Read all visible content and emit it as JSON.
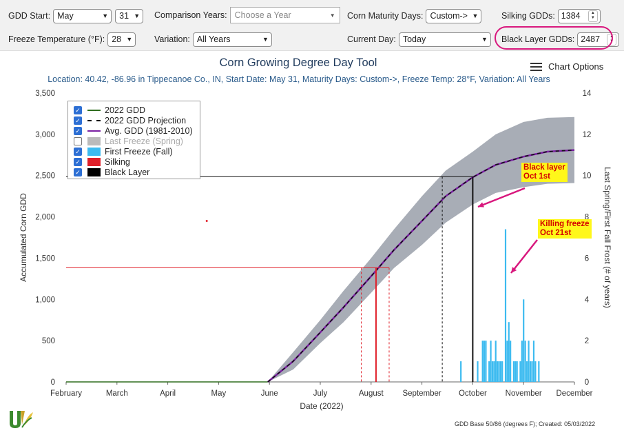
{
  "controls": {
    "gdd_start_label": "GDD Start:",
    "gdd_start_month": "May",
    "gdd_start_day": "31",
    "comparison_label": "Comparison Years:",
    "comparison_placeholder": "Choose a Year",
    "maturity_label": "Corn Maturity Days:",
    "maturity_value": "Custom->",
    "silking_label": "Silking GDDs:",
    "silking_value": "1384",
    "freeze_label": "Freeze Temperature (°F):",
    "freeze_value": "28",
    "variation_label": "Variation:",
    "variation_value": "All Years",
    "current_day_label": "Current Day:",
    "current_day_value": "Today",
    "black_layer_label": "Black Layer GDDs:",
    "black_layer_value": "2487"
  },
  "chart": {
    "title": "Corn Growing Degree Day Tool",
    "subtitle": "Location: 40.42, -86.96 in Tippecanoe Co., IN, Start Date: May 31, Maturity Days: Custom->, Freeze Temp: 28°F, Variation: All Years",
    "options_label": "Chart Options",
    "footer": "GDD Base 50/86 (degrees F); Created: 05/03/2022",
    "callouts": {
      "black_layer": "Black layer\nOct 1st",
      "killing_freeze": "Killing freeze\nOct 21st"
    },
    "legend": [
      {
        "label": "2022 GDD",
        "checked": true,
        "color": "#2f6d1f",
        "style": "line"
      },
      {
        "label": "2022 GDD Projection",
        "checked": true,
        "color": "#000000",
        "style": "dash"
      },
      {
        "label": "Avg. GDD (1981-2010)",
        "checked": true,
        "color": "#7a1fa2",
        "style": "line"
      },
      {
        "label": "Last Freeze (Spring)",
        "checked": false,
        "color": "#bbbbbb",
        "style": "box"
      },
      {
        "label": "First Freeze (Fall)",
        "checked": true,
        "color": "#3dbbf0",
        "style": "box"
      },
      {
        "label": "Silking",
        "checked": true,
        "color": "#e0202a",
        "style": "box"
      },
      {
        "label": "Black Layer",
        "checked": true,
        "color": "#000000",
        "style": "box"
      }
    ]
  },
  "chart_data": {
    "type": "line",
    "title": "Corn Growing Degree Day Tool",
    "xlabel": "Date (2022)",
    "ylabel": "Accumulated Corn GDD",
    "y2label": "Last Spring/First Fall Frost (# of years)",
    "x_ticks": [
      "February",
      "March",
      "April",
      "May",
      "June",
      "July",
      "August",
      "September",
      "October",
      "November",
      "December"
    ],
    "x_range_months": [
      2,
      12
    ],
    "y_ticks": [
      "0",
      "500",
      "1,000",
      "1,500",
      "2,000",
      "2,500",
      "3,000",
      "3,500"
    ],
    "ylim": [
      0,
      3500
    ],
    "y2_ticks": [
      "0",
      "2",
      "4",
      "6",
      "8",
      "10",
      "12",
      "14"
    ],
    "y2lim": [
      0,
      14
    ],
    "avg_gdd": {
      "x": [
        "2022-05-31",
        "2022-06-15",
        "2022-07-01",
        "2022-07-15",
        "2022-08-01",
        "2022-08-15",
        "2022-09-01",
        "2022-09-15",
        "2022-10-01",
        "2022-10-15",
        "2022-11-01",
        "2022-11-15",
        "2022-12-01"
      ],
      "y": [
        0,
        250,
        600,
        900,
        1280,
        1600,
        1950,
        2250,
        2480,
        2630,
        2730,
        2790,
        2810
      ]
    },
    "band": {
      "x": [
        "2022-05-31",
        "2022-06-15",
        "2022-07-01",
        "2022-07-15",
        "2022-08-01",
        "2022-08-15",
        "2022-09-01",
        "2022-09-15",
        "2022-10-01",
        "2022-10-15",
        "2022-11-01",
        "2022-11-15",
        "2022-12-01"
      ],
      "upper": [
        0,
        360,
        750,
        1100,
        1500,
        1850,
        2250,
        2560,
        2790,
        3000,
        3150,
        3200,
        3210
      ],
      "lower": [
        0,
        150,
        470,
        720,
        1080,
        1380,
        1660,
        1930,
        2150,
        2290,
        2360,
        2400,
        2410
      ]
    },
    "silking": {
      "date": "2022-08-04",
      "gdd": 1384,
      "range": [
        "2022-07-26",
        "2022-08-12"
      ]
    },
    "black_layer": {
      "date": "2022-10-01",
      "gdd": 2487,
      "range": [
        "2022-09-13",
        "2022-10-01"
      ]
    },
    "first_freeze_bars": [
      {
        "date": "2022-09-24",
        "count": 1
      },
      {
        "date": "2022-10-04",
        "count": 1
      },
      {
        "date": "2022-10-07",
        "count": 2
      },
      {
        "date": "2022-10-08",
        "count": 2
      },
      {
        "date": "2022-10-09",
        "count": 2
      },
      {
        "date": "2022-10-11",
        "count": 1
      },
      {
        "date": "2022-10-12",
        "count": 2
      },
      {
        "date": "2022-10-13",
        "count": 1
      },
      {
        "date": "2022-10-14",
        "count": 1
      },
      {
        "date": "2022-10-15",
        "count": 2
      },
      {
        "date": "2022-10-16",
        "count": 1
      },
      {
        "date": "2022-10-17",
        "count": 1
      },
      {
        "date": "2022-10-18",
        "count": 1
      },
      {
        "date": "2022-10-19",
        "count": 1
      },
      {
        "date": "2022-10-21",
        "count": 7.4
      },
      {
        "date": "2022-10-22",
        "count": 2
      },
      {
        "date": "2022-10-23",
        "count": 2.9
      },
      {
        "date": "2022-10-24",
        "count": 2
      },
      {
        "date": "2022-10-26",
        "count": 1
      },
      {
        "date": "2022-10-27",
        "count": 1
      },
      {
        "date": "2022-10-28",
        "count": 1
      },
      {
        "date": "2022-10-30",
        "count": 1
      },
      {
        "date": "2022-10-31",
        "count": 2
      },
      {
        "date": "2022-11-01",
        "count": 4
      },
      {
        "date": "2022-11-02",
        "count": 2
      },
      {
        "date": "2022-11-03",
        "count": 1
      },
      {
        "date": "2022-11-04",
        "count": 2
      },
      {
        "date": "2022-11-05",
        "count": 1
      },
      {
        "date": "2022-11-06",
        "count": 1
      },
      {
        "date": "2022-11-07",
        "count": 2
      },
      {
        "date": "2022-11-08",
        "count": 1
      },
      {
        "date": "2022-11-10",
        "count": 1
      }
    ]
  }
}
